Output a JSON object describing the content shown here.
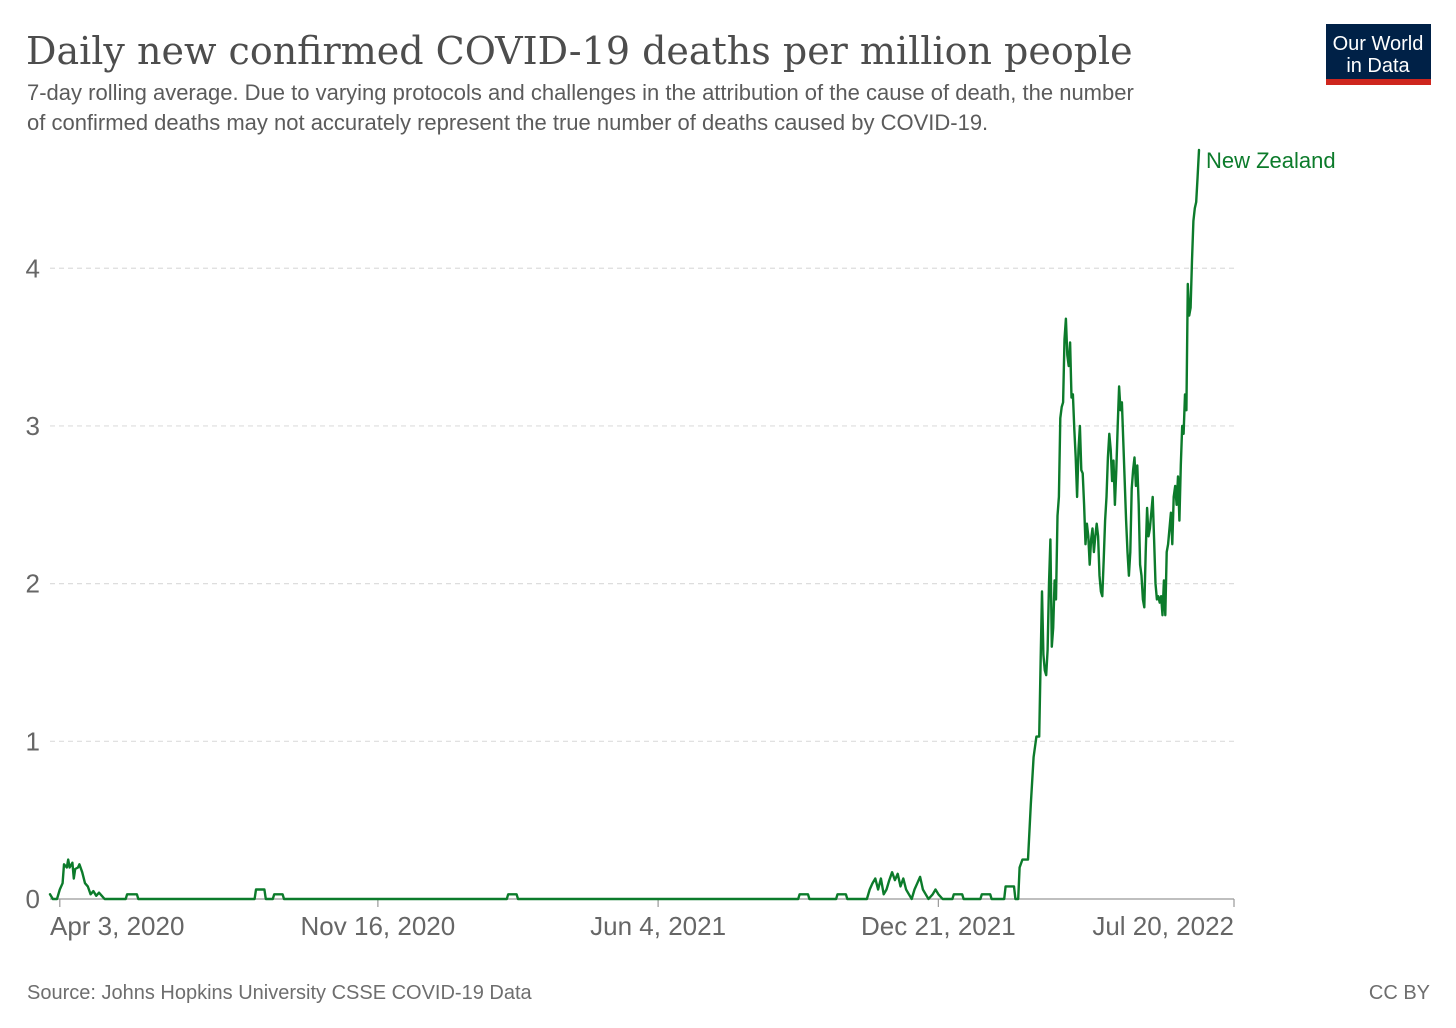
{
  "header": {
    "title": "Daily new confirmed COVID-19 deaths per million people",
    "subtitle_line1": "7-day rolling average. Due to varying protocols and challenges in the attribution of the cause of death, the number",
    "subtitle_line2": "of confirmed deaths may not accurately represent the true number of deaths caused by COVID-19."
  },
  "logo": {
    "line1": "Our World",
    "line2": "in Data",
    "bg_color": "#002147",
    "accent_color": "#ce261e"
  },
  "footer": {
    "source": "Source: Johns Hopkins University CSSE COVID-19 Data",
    "license": "CC BY"
  },
  "chart_data": {
    "type": "line",
    "title": "Daily new confirmed COVID-19 deaths per million people",
    "xlabel": "",
    "ylabel": "",
    "ylim": [
      0,
      4.75
    ],
    "y_ticks": [
      0,
      1,
      2,
      3,
      4
    ],
    "x_range": [
      "2020-03-27",
      "2022-07-20"
    ],
    "x_ticks": [
      {
        "date": "2020-04-03",
        "label": "Apr 3, 2020"
      },
      {
        "date": "2020-11-16",
        "label": "Nov 16, 2020"
      },
      {
        "date": "2021-06-04",
        "label": "Jun 4, 2021"
      },
      {
        "date": "2021-12-21",
        "label": "Dec 21, 2021"
      },
      {
        "date": "2022-07-20",
        "label": "Jul 20, 2022"
      }
    ],
    "grid": true,
    "series": [
      {
        "name": "New Zealand",
        "color": "#0c7b2b",
        "points": [
          [
            "2020-03-27",
            0.03
          ],
          [
            "2020-03-29",
            0.0
          ],
          [
            "2020-04-01",
            0.0
          ],
          [
            "2020-04-03",
            0.06
          ],
          [
            "2020-04-05",
            0.1
          ],
          [
            "2020-04-06",
            0.22
          ],
          [
            "2020-04-08",
            0.2
          ],
          [
            "2020-04-09",
            0.25
          ],
          [
            "2020-04-10",
            0.2
          ],
          [
            "2020-04-12",
            0.23
          ],
          [
            "2020-04-13",
            0.13
          ],
          [
            "2020-04-14",
            0.19
          ],
          [
            "2020-04-16",
            0.2
          ],
          [
            "2020-04-17",
            0.22
          ],
          [
            "2020-04-19",
            0.17
          ],
          [
            "2020-04-21",
            0.1
          ],
          [
            "2020-04-23",
            0.08
          ],
          [
            "2020-04-25",
            0.03
          ],
          [
            "2020-04-27",
            0.05
          ],
          [
            "2020-04-29",
            0.02
          ],
          [
            "2020-05-01",
            0.04
          ],
          [
            "2020-05-03",
            0.02
          ],
          [
            "2020-05-05",
            0.0
          ],
          [
            "2020-05-20",
            0.0
          ],
          [
            "2020-05-21",
            0.03
          ],
          [
            "2020-05-28",
            0.03
          ],
          [
            "2020-05-29",
            0.0
          ],
          [
            "2020-08-20",
            0.0
          ],
          [
            "2020-08-21",
            0.06
          ],
          [
            "2020-08-27",
            0.06
          ],
          [
            "2020-08-28",
            0.0
          ],
          [
            "2020-09-02",
            0.0
          ],
          [
            "2020-09-03",
            0.03
          ],
          [
            "2020-09-09",
            0.03
          ],
          [
            "2020-09-10",
            0.0
          ],
          [
            "2021-02-16",
            0.0
          ],
          [
            "2021-02-17",
            0.03
          ],
          [
            "2021-02-23",
            0.03
          ],
          [
            "2021-02-24",
            0.0
          ],
          [
            "2021-09-12",
            0.0
          ],
          [
            "2021-09-13",
            0.03
          ],
          [
            "2021-09-19",
            0.03
          ],
          [
            "2021-09-20",
            0.0
          ],
          [
            "2021-10-09",
            0.0
          ],
          [
            "2021-10-10",
            0.03
          ],
          [
            "2021-10-16",
            0.03
          ],
          [
            "2021-10-17",
            0.0
          ],
          [
            "2021-10-31",
            0.0
          ],
          [
            "2021-11-02",
            0.06
          ],
          [
            "2021-11-04",
            0.1
          ],
          [
            "2021-11-06",
            0.13
          ],
          [
            "2021-11-08",
            0.06
          ],
          [
            "2021-11-10",
            0.13
          ],
          [
            "2021-11-12",
            0.03
          ],
          [
            "2021-11-14",
            0.06
          ],
          [
            "2021-11-16",
            0.12
          ],
          [
            "2021-11-18",
            0.17
          ],
          [
            "2021-11-20",
            0.12
          ],
          [
            "2021-11-22",
            0.16
          ],
          [
            "2021-11-24",
            0.08
          ],
          [
            "2021-11-26",
            0.13
          ],
          [
            "2021-11-28",
            0.06
          ],
          [
            "2021-11-30",
            0.03
          ],
          [
            "2021-12-02",
            0.0
          ],
          [
            "2021-12-04",
            0.06
          ],
          [
            "2021-12-06",
            0.1
          ],
          [
            "2021-12-08",
            0.14
          ],
          [
            "2021-12-10",
            0.06
          ],
          [
            "2021-12-12",
            0.03
          ],
          [
            "2021-12-14",
            0.0
          ],
          [
            "2021-12-17",
            0.03
          ],
          [
            "2021-12-19",
            0.06
          ],
          [
            "2021-12-21",
            0.03
          ],
          [
            "2021-12-24",
            0.0
          ],
          [
            "2021-12-31",
            0.0
          ],
          [
            "2022-01-01",
            0.03
          ],
          [
            "2022-01-07",
            0.03
          ],
          [
            "2022-01-08",
            0.0
          ],
          [
            "2022-01-20",
            0.0
          ],
          [
            "2022-01-21",
            0.03
          ],
          [
            "2022-01-27",
            0.03
          ],
          [
            "2022-01-28",
            0.0
          ],
          [
            "2022-02-06",
            0.0
          ],
          [
            "2022-02-07",
            0.08
          ],
          [
            "2022-02-13",
            0.08
          ],
          [
            "2022-02-14",
            0.0
          ],
          [
            "2022-02-16",
            0.0
          ],
          [
            "2022-02-17",
            0.2
          ],
          [
            "2022-02-19",
            0.25
          ],
          [
            "2022-02-23",
            0.25
          ],
          [
            "2022-02-25",
            0.6
          ],
          [
            "2022-02-27",
            0.9
          ],
          [
            "2022-03-01",
            1.03
          ],
          [
            "2022-03-03",
            1.03
          ],
          [
            "2022-03-04",
            1.5
          ],
          [
            "2022-03-05",
            1.95
          ],
          [
            "2022-03-06",
            1.55
          ],
          [
            "2022-03-07",
            1.45
          ],
          [
            "2022-03-08",
            1.42
          ],
          [
            "2022-03-09",
            1.58
          ],
          [
            "2022-03-10",
            2.0
          ],
          [
            "2022-03-11",
            2.28
          ],
          [
            "2022-03-12",
            1.6
          ],
          [
            "2022-03-13",
            1.72
          ],
          [
            "2022-03-14",
            2.02
          ],
          [
            "2022-03-15",
            1.9
          ],
          [
            "2022-03-16",
            2.43
          ],
          [
            "2022-03-17",
            2.55
          ],
          [
            "2022-03-18",
            3.05
          ],
          [
            "2022-03-19",
            3.12
          ],
          [
            "2022-03-20",
            3.15
          ],
          [
            "2022-03-21",
            3.55
          ],
          [
            "2022-03-22",
            3.68
          ],
          [
            "2022-03-23",
            3.45
          ],
          [
            "2022-03-24",
            3.38
          ],
          [
            "2022-03-25",
            3.53
          ],
          [
            "2022-03-26",
            3.18
          ],
          [
            "2022-03-27",
            3.2
          ],
          [
            "2022-03-28",
            2.98
          ],
          [
            "2022-03-29",
            2.8
          ],
          [
            "2022-03-30",
            2.55
          ],
          [
            "2022-03-31",
            2.85
          ],
          [
            "2022-04-01",
            3.0
          ],
          [
            "2022-04-02",
            2.72
          ],
          [
            "2022-04-03",
            2.7
          ],
          [
            "2022-04-04",
            2.5
          ],
          [
            "2022-04-05",
            2.25
          ],
          [
            "2022-04-06",
            2.38
          ],
          [
            "2022-04-07",
            2.3
          ],
          [
            "2022-04-08",
            2.12
          ],
          [
            "2022-04-09",
            2.28
          ],
          [
            "2022-04-10",
            2.35
          ],
          [
            "2022-04-11",
            2.2
          ],
          [
            "2022-04-12",
            2.3
          ],
          [
            "2022-04-13",
            2.38
          ],
          [
            "2022-04-14",
            2.3
          ],
          [
            "2022-04-15",
            2.05
          ],
          [
            "2022-04-16",
            1.95
          ],
          [
            "2022-04-17",
            1.92
          ],
          [
            "2022-04-18",
            2.15
          ],
          [
            "2022-04-19",
            2.4
          ],
          [
            "2022-04-20",
            2.55
          ],
          [
            "2022-04-21",
            2.8
          ],
          [
            "2022-04-22",
            2.95
          ],
          [
            "2022-04-23",
            2.85
          ],
          [
            "2022-04-24",
            2.65
          ],
          [
            "2022-04-25",
            2.78
          ],
          [
            "2022-04-26",
            2.5
          ],
          [
            "2022-04-27",
            2.72
          ],
          [
            "2022-04-28",
            3.0
          ],
          [
            "2022-04-29",
            3.25
          ],
          [
            "2022-04-30",
            3.1
          ],
          [
            "2022-05-01",
            3.15
          ],
          [
            "2022-05-02",
            2.9
          ],
          [
            "2022-05-03",
            2.65
          ],
          [
            "2022-05-04",
            2.4
          ],
          [
            "2022-05-05",
            2.2
          ],
          [
            "2022-05-06",
            2.05
          ],
          [
            "2022-05-07",
            2.2
          ],
          [
            "2022-05-08",
            2.6
          ],
          [
            "2022-05-09",
            2.72
          ],
          [
            "2022-05-10",
            2.8
          ],
          [
            "2022-05-11",
            2.62
          ],
          [
            "2022-05-12",
            2.75
          ],
          [
            "2022-05-13",
            2.5
          ],
          [
            "2022-05-14",
            2.12
          ],
          [
            "2022-05-15",
            2.05
          ],
          [
            "2022-05-16",
            1.9
          ],
          [
            "2022-05-17",
            1.85
          ],
          [
            "2022-05-18",
            2.2
          ],
          [
            "2022-05-19",
            2.48
          ],
          [
            "2022-05-20",
            2.3
          ],
          [
            "2022-05-21",
            2.35
          ],
          [
            "2022-05-22",
            2.45
          ],
          [
            "2022-05-23",
            2.55
          ],
          [
            "2022-05-24",
            2.28
          ],
          [
            "2022-05-25",
            2.0
          ],
          [
            "2022-05-26",
            1.9
          ],
          [
            "2022-05-27",
            1.92
          ],
          [
            "2022-05-28",
            1.88
          ],
          [
            "2022-05-29",
            1.92
          ],
          [
            "2022-05-30",
            1.8
          ],
          [
            "2022-05-31",
            2.02
          ],
          [
            "2022-06-01",
            1.8
          ],
          [
            "2022-06-02",
            2.2
          ],
          [
            "2022-06-03",
            2.25
          ],
          [
            "2022-06-04",
            2.35
          ],
          [
            "2022-06-05",
            2.45
          ],
          [
            "2022-06-06",
            2.25
          ],
          [
            "2022-06-07",
            2.55
          ],
          [
            "2022-06-08",
            2.62
          ],
          [
            "2022-06-09",
            2.5
          ],
          [
            "2022-06-10",
            2.68
          ],
          [
            "2022-06-11",
            2.4
          ],
          [
            "2022-06-12",
            2.75
          ],
          [
            "2022-06-13",
            3.0
          ],
          [
            "2022-06-14",
            2.95
          ],
          [
            "2022-06-15",
            3.2
          ],
          [
            "2022-06-16",
            3.1
          ],
          [
            "2022-06-17",
            3.9
          ],
          [
            "2022-06-18",
            3.7
          ],
          [
            "2022-06-19",
            3.75
          ],
          [
            "2022-06-20",
            4.05
          ],
          [
            "2022-06-21",
            4.3
          ],
          [
            "2022-06-22",
            4.38
          ],
          [
            "2022-06-23",
            4.42
          ],
          [
            "2022-06-24",
            4.58
          ],
          [
            "2022-06-25",
            4.75
          ]
        ]
      }
    ]
  }
}
